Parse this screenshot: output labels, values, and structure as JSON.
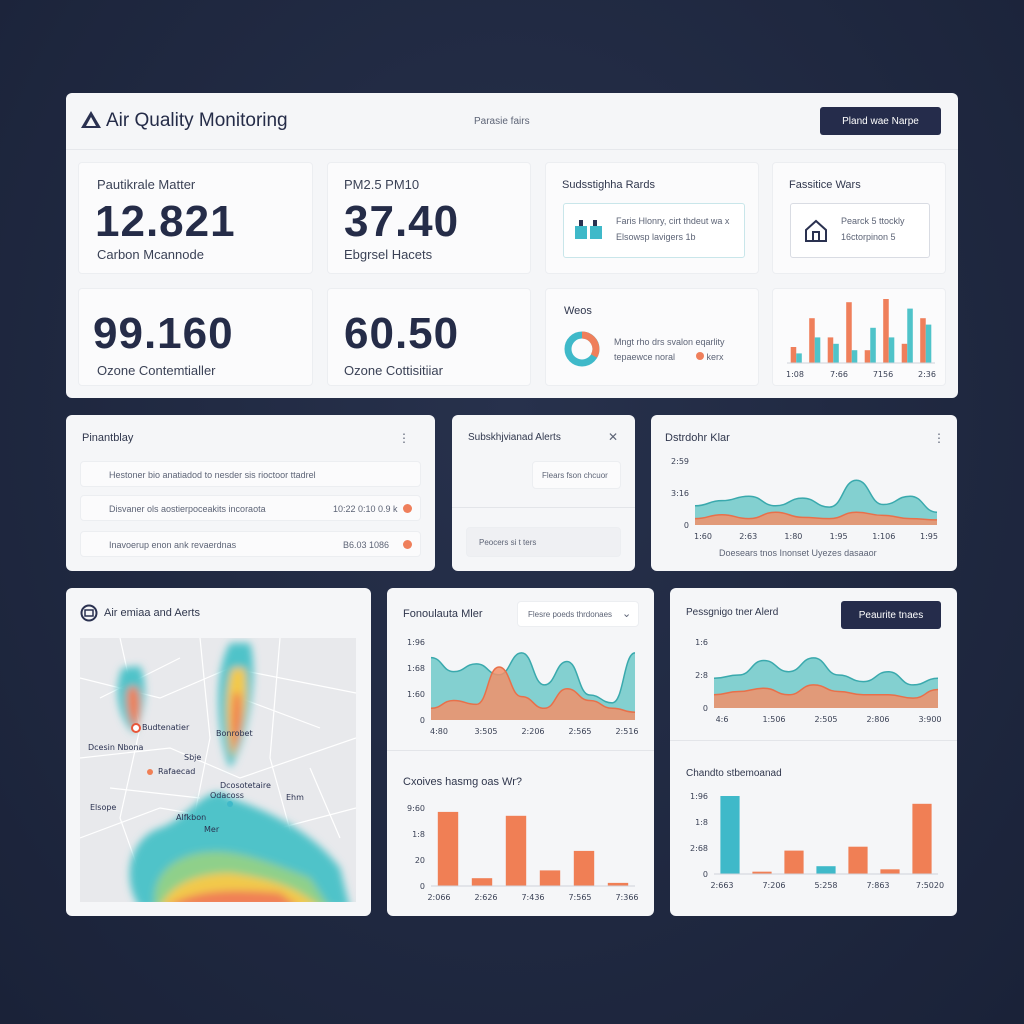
{
  "header": {
    "title": "Air Quality Monitoring",
    "center": "Parasie fairs",
    "button": "Pland wae Narpe"
  },
  "metrics": [
    {
      "label": "Pautikrale Matter",
      "value": "12.821",
      "sub": "Carbon Mcannode"
    },
    {
      "label": "PM2.5 PM10",
      "value": "37.40",
      "sub": "Ebgrsel Hacets"
    },
    {
      "value": "99.160",
      "sub": "Ozone Contemtialler"
    },
    {
      "value": "60.50",
      "sub": "Ozone Cottisitiiar"
    }
  ],
  "cards": {
    "stats": {
      "title": "Sudsstighha Rards",
      "lines": [
        "Faris Hlonry, cirt thdeut wa x",
        "Elsowsp lavigers 1b"
      ]
    },
    "wars": {
      "title": "Fassitice Wars",
      "lines": [
        "Pearck 5 ttockly",
        "16ctorpinon 5"
      ]
    },
    "weos": {
      "title": "Weos",
      "lines": [
        "Mngt rho drs svalon eqarlity",
        "tepaewce noral"
      ],
      "tag": "kerx"
    },
    "bars": {
      "type": "bar",
      "xticks": [
        "1:08",
        "7:66",
        "7156",
        "2:36"
      ],
      "ylim": [
        0,
        100
      ],
      "series": [
        {
          "color": "#ef7f5b",
          "values": [
            25,
            70,
            40,
            95,
            20,
            100,
            30,
            70
          ]
        },
        {
          "color": "#4fc3c9",
          "values": [
            15,
            40,
            30,
            20,
            55,
            40,
            85,
            60
          ]
        }
      ]
    }
  },
  "panel_list": {
    "title": "Pinantblay",
    "items": [
      {
        "text": "Hestoner bio anatiadod to nesder sis rioctoor ttadrel"
      },
      {
        "text": "Disvaner ols aostierpoceakits incoraota",
        "value": "10:22 0:10 0.9 k"
      },
      {
        "text": "Inavoerup enon ank revaerdnas",
        "value": "B6.03 1086"
      }
    ]
  },
  "panel_alerts": {
    "title": "Subskhjvianad Alerts",
    "input": "Flears fson chcuor",
    "field": "Peocers si t ters"
  },
  "panel_trend": {
    "title": "Dstrdohr Klar",
    "caption": "Doesears tnos Inonset Uyezes dasaaor",
    "chart": {
      "type": "area",
      "yticks": [
        "2:59",
        "3:16",
        "0"
      ],
      "xticks": [
        "1:60",
        "2:63",
        "1:80",
        "1:95",
        "1:106",
        "1:95"
      ],
      "ylim": [
        0,
        100
      ],
      "series": [
        {
          "color": "#6fc9c9",
          "values": [
            30,
            38,
            45,
            30,
            42,
            28,
            70,
            32,
            45,
            20
          ]
        },
        {
          "color": "#f2916a",
          "values": [
            10,
            16,
            10,
            20,
            12,
            10,
            20,
            15,
            10,
            8
          ]
        }
      ]
    }
  },
  "map": {
    "title": "Air emiaa and Aerts",
    "labels": [
      "Dcesin Nbona",
      "Budtenatier",
      "Bonrobet",
      "Sbje",
      "Rafaecad",
      "Elsope",
      "Dcosotetaire",
      "Odacoss",
      "Alfkbon",
      "Mer",
      "Ehm"
    ]
  },
  "panel_flow": {
    "title": "Fonoulauta Mler",
    "dropdown": "Flesre poeds thrdonaes",
    "chart": {
      "type": "area",
      "yticks": [
        "1:96",
        "1:68",
        "1:60",
        "0"
      ],
      "xticks": [
        "4:80",
        "3:505",
        "2:206",
        "2:565",
        "2:516"
      ],
      "ylim": [
        0,
        100
      ],
      "series": [
        {
          "color": "#6fc9c9",
          "values": [
            80,
            62,
            72,
            58,
            86,
            45,
            75,
            32,
            22,
            86
          ]
        },
        {
          "color": "#f2916a",
          "values": [
            15,
            25,
            20,
            68,
            30,
            15,
            40,
            25,
            15,
            10
          ]
        }
      ]
    }
  },
  "panel_bar1": {
    "title": "Cxoives hasmg oas Wr?",
    "chart": {
      "type": "bar",
      "yticks": [
        "9:60",
        "1:8",
        "20",
        "0"
      ],
      "xticks": [
        "2:066",
        "2:626",
        "7:436",
        "7:565",
        "7:366"
      ],
      "ylim": [
        0,
        100
      ],
      "series": [
        {
          "color": "#f07f55",
          "values": [
            95,
            10,
            90,
            20,
            45,
            4
          ]
        }
      ]
    }
  },
  "panel_alert2": {
    "title": "Pessgnigo tner Alerd",
    "button": "Peaurite tnaes",
    "chart": {
      "type": "area",
      "yticks": [
        "1:6",
        "2:8",
        "0"
      ],
      "xticks": [
        "4:6",
        "1:506",
        "2:505",
        "2:806",
        "3:900"
      ],
      "ylim": [
        0,
        100
      ],
      "series": [
        {
          "color": "#6fc9c9",
          "values": [
            45,
            50,
            72,
            55,
            76,
            50,
            40,
            55,
            35,
            45
          ]
        },
        {
          "color": "#f2916a",
          "values": [
            20,
            25,
            30,
            20,
            35,
            25,
            20,
            20,
            15,
            28
          ]
        }
      ]
    }
  },
  "panel_bar2": {
    "title": "Chandto stbemoanad",
    "chart": {
      "type": "bar",
      "yticks": [
        "1:96",
        "1:8",
        "2:68",
        "0"
      ],
      "xticks": [
        "2:663",
        "7:206",
        "5:258",
        "7:863",
        "7:5020"
      ],
      "ylim": [
        0,
        100
      ],
      "colors": [
        "#3fb9c9",
        "#f07f55",
        "#f07f55",
        "#3fb9c9",
        "#f07f55",
        "#f07f55",
        "#f07f55"
      ],
      "series": [
        {
          "values": [
            100,
            3,
            30,
            10,
            35,
            6,
            90
          ]
        }
      ]
    }
  }
}
